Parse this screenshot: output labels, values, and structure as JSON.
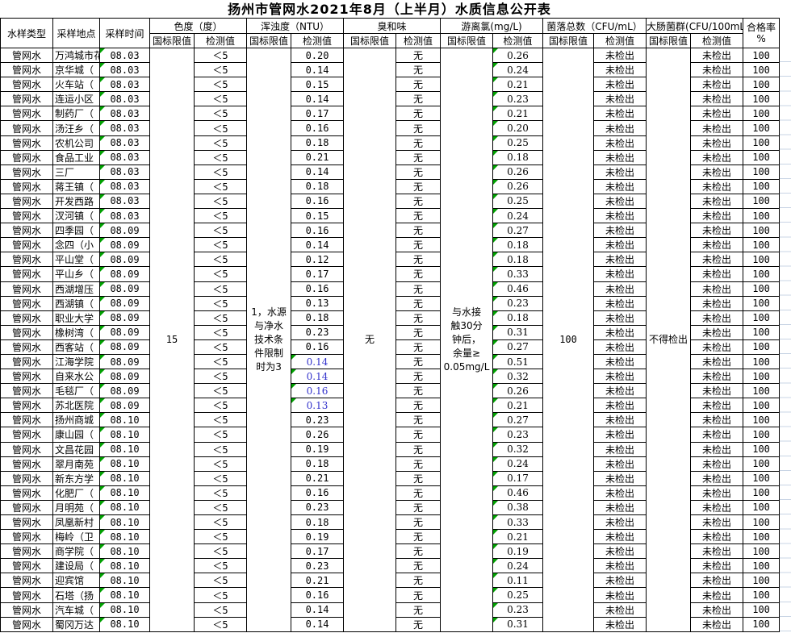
{
  "title": "扬州市管网水2021年8月（上半月）水质信息公开表",
  "colors": {
    "border_black": "#000000",
    "indicator_triangle_green": "#00a000",
    "alt_value_blue": "#3333cc",
    "excel_gridline": "#c8d4e4"
  },
  "columns": {
    "sample_type": "水样类型",
    "location": "采样地点",
    "time": "采样时间",
    "limit_label": "国标限值",
    "value_label": "检测值",
    "pass_rate_label": "合格率",
    "pass_rate_unit": "%",
    "groups": [
      {
        "label": "色度（度）"
      },
      {
        "label": "浑浊度（NTU）"
      },
      {
        "label": "臭和味"
      },
      {
        "label": "游离氯(mg/L)"
      },
      {
        "label": "菌落总数（CFU/mL）"
      },
      {
        "label": "大肠菌群(CFU/100mL"
      }
    ]
  },
  "limits": {
    "color": "15",
    "turbidity": "1，水源\n与净水\n技术条\n件限制\n时为3",
    "odor": "无",
    "chlorine": "与水接\n触30分\n钟后，\n余量≥\n0.05mg/L",
    "colony": "100",
    "coliform": "不得检出"
  },
  "row_constants": {
    "sample_type": "管网水",
    "color_value": "＜5",
    "odor_value": "无",
    "colony_value": "未检出",
    "coliform_value": "未检出",
    "pass_rate": "100"
  },
  "blue_turbidity_rows": [
    22,
    23,
    24,
    25
  ],
  "rows": [
    [
      "万鸿城市花",
      "08.03",
      "0.20",
      "0.26"
    ],
    [
      "京华城（",
      "08.03",
      "0.14",
      "0.24"
    ],
    [
      "火车站（",
      "08.03",
      "0.15",
      "0.21"
    ],
    [
      "连运小区",
      "08.03",
      "0.14",
      "0.23"
    ],
    [
      "制药厂（",
      "08.03",
      "0.17",
      "0.21"
    ],
    [
      "汤汪乡（",
      "08.03",
      "0.16",
      "0.20"
    ],
    [
      "农机公司",
      "08.03",
      "0.18",
      "0.25"
    ],
    [
      "食品工业",
      "08.03",
      "0.21",
      "0.18"
    ],
    [
      "三厂",
      "08.03",
      "0.14",
      "0.26"
    ],
    [
      "蒋王镇（",
      "08.03",
      "0.18",
      "0.26"
    ],
    [
      "开发西路",
      "08.03",
      "0.16",
      "0.25"
    ],
    [
      "汊河镇（",
      "08.03",
      "0.15",
      "0.24"
    ],
    [
      "四季园（",
      "08.09",
      "0.16",
      "0.27"
    ],
    [
      "念四（小",
      "08.09",
      "0.14",
      "0.18"
    ],
    [
      "平山堂（",
      "08.09",
      "0.12",
      "0.18"
    ],
    [
      "平山乡（",
      "08.09",
      "0.17",
      "0.33"
    ],
    [
      "西湖增压",
      "08.09",
      "0.16",
      "0.46"
    ],
    [
      "西湖镇（",
      "08.09",
      "0.13",
      "0.23"
    ],
    [
      "职业大学",
      "08.09",
      "0.18",
      "0.18"
    ],
    [
      "橡树湾（",
      "08.09",
      "0.23",
      "0.31"
    ],
    [
      "西客站（",
      "08.09",
      "0.16",
      "0.27"
    ],
    [
      "江海学院",
      "08.09",
      "0.14",
      "0.51"
    ],
    [
      "自来水公",
      "08.09",
      "0.14",
      "0.32"
    ],
    [
      "毛毯厂（",
      "08.09",
      "0.16",
      "0.26"
    ],
    [
      "苏北医院",
      "08.09",
      "0.13",
      "0.21"
    ],
    [
      "扬州商城",
      "08.10",
      "0.23",
      "0.27"
    ],
    [
      "康山园（",
      "08.10",
      "0.26",
      "0.23"
    ],
    [
      "文昌花园",
      "08.10",
      "0.19",
      "0.32"
    ],
    [
      "翠月南苑",
      "08.10",
      "0.18",
      "0.24"
    ],
    [
      "新东方学",
      "08.10",
      "0.21",
      "0.17"
    ],
    [
      "化肥厂（",
      "08.10",
      "0.16",
      "0.46"
    ],
    [
      "月明苑（",
      "08.10",
      "0.23",
      "0.38"
    ],
    [
      "凤凰新村",
      "08.10",
      "0.18",
      "0.33"
    ],
    [
      "梅岭（卫",
      "08.10",
      "0.19",
      "0.21"
    ],
    [
      "商学院（",
      "08.10",
      "0.17",
      "0.19"
    ],
    [
      "建设局（",
      "08.10",
      "0.23",
      "0.24"
    ],
    [
      "迎宾馆",
      "08.10",
      "0.21",
      "0.11"
    ],
    [
      "石塔（扬",
      "08.10",
      "0.16",
      "0.25"
    ],
    [
      "汽车城（",
      "08.10",
      "0.14",
      "0.23"
    ],
    [
      "蜀冈万达",
      "08.10",
      "0.14",
      "0.31"
    ]
  ]
}
